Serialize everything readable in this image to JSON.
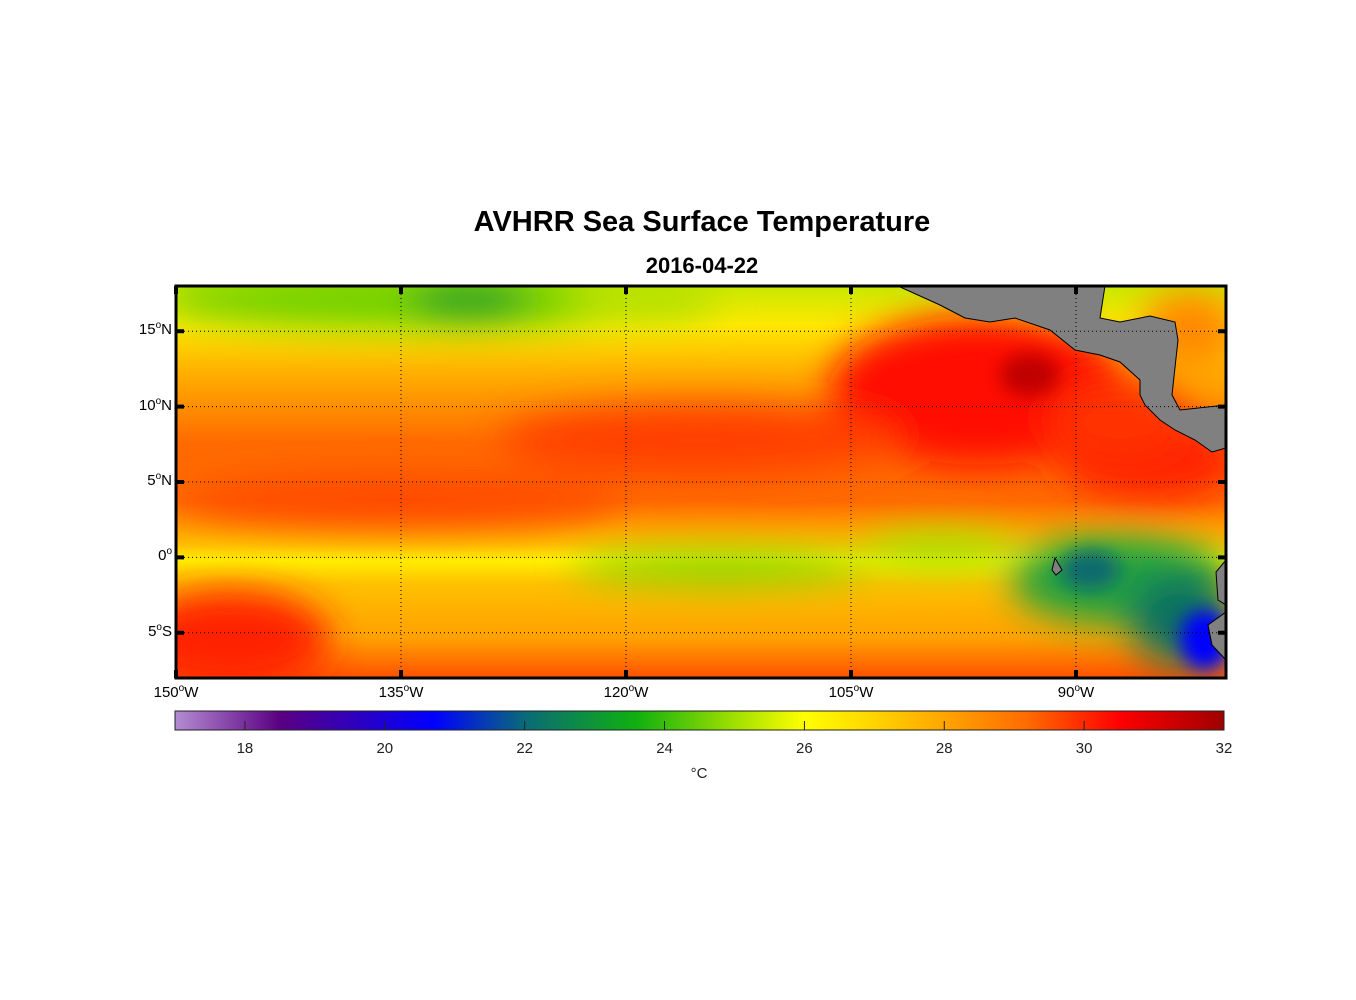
{
  "title": "AVHRR Sea Surface Temperature",
  "subtitle": "2016-04-22",
  "map": {
    "lon_range": [
      -150,
      -80
    ],
    "lat_range": [
      -8,
      18
    ],
    "lat_labels": [
      {
        "num": "15",
        "sup": "o",
        "hem": "N",
        "lat": 15
      },
      {
        "num": "10",
        "sup": "o",
        "hem": "N",
        "lat": 10
      },
      {
        "num": "5",
        "sup": "o",
        "hem": "N",
        "lat": 5
      },
      {
        "num": "0",
        "sup": "o",
        "hem": "",
        "lat": 0
      },
      {
        "num": "5",
        "sup": "o",
        "hem": "S",
        "lat": -5
      }
    ],
    "lon_labels": [
      {
        "num": "150",
        "sup": "o",
        "hem": "W",
        "lon": -150
      },
      {
        "num": "135",
        "sup": "o",
        "hem": "W",
        "lon": -135
      },
      {
        "num": "120",
        "sup": "o",
        "hem": "W",
        "lon": -120
      },
      {
        "num": "105",
        "sup": "o",
        "hem": "W",
        "lon": -105
      },
      {
        "num": "90",
        "sup": "o",
        "hem": "W",
        "lon": -90
      }
    ],
    "land_color": "#808080"
  },
  "colorbar": {
    "range": [
      17,
      32
    ],
    "ticks": [
      "18",
      "20",
      "22",
      "24",
      "26",
      "28",
      "30",
      "32"
    ],
    "unit": "°C",
    "stops": [
      {
        "v": 17,
        "c": "#b48cd2"
      },
      {
        "v": 18.5,
        "c": "#5a0082"
      },
      {
        "v": 20.7,
        "c": "#0000ff"
      },
      {
        "v": 22,
        "c": "#0a6a78"
      },
      {
        "v": 23.6,
        "c": "#10b010"
      },
      {
        "v": 25,
        "c": "#a0e000"
      },
      {
        "v": 26,
        "c": "#ffff00"
      },
      {
        "v": 27,
        "c": "#ffd400"
      },
      {
        "v": 28,
        "c": "#ffa500"
      },
      {
        "v": 29.2,
        "c": "#ff6a00"
      },
      {
        "v": 30.5,
        "c": "#ff0000"
      },
      {
        "v": 32,
        "c": "#a00000"
      }
    ]
  }
}
